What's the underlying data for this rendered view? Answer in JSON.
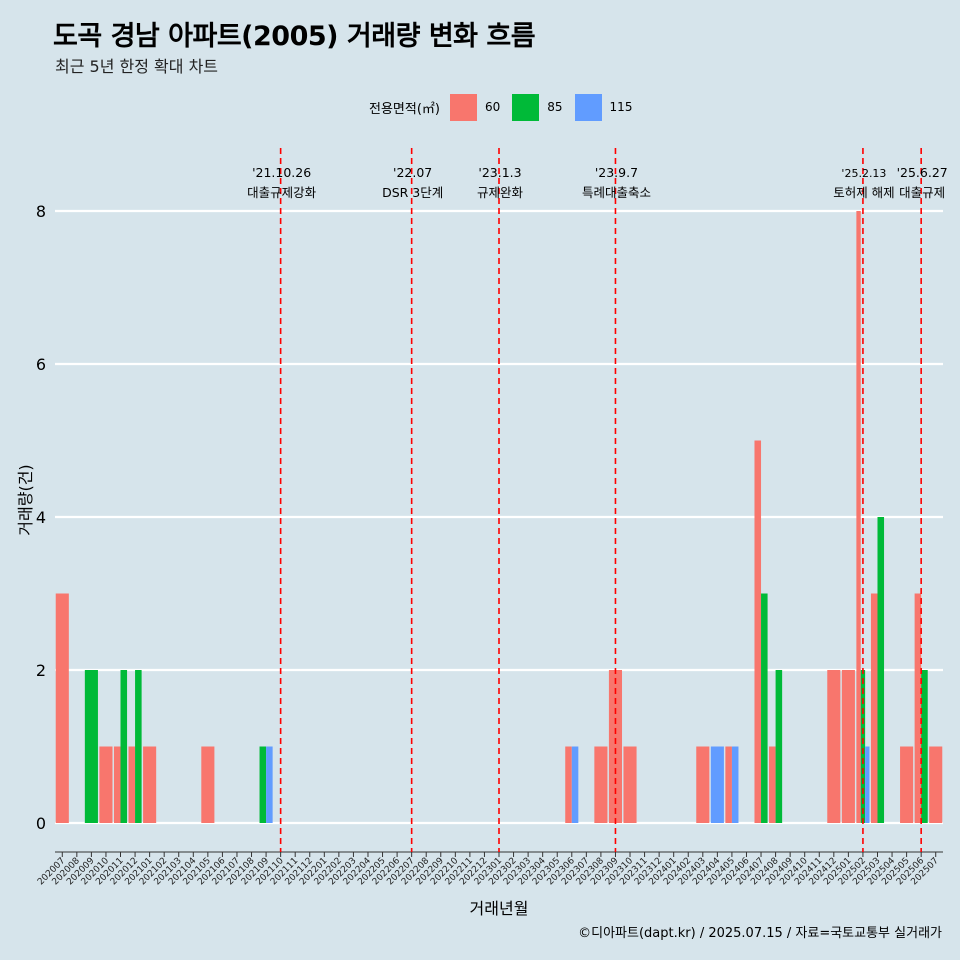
{
  "title": "도곡 경남 아파트(2005) 거래량 변화 흐름",
  "subtitle": "최근 5년 한정 확대 차트",
  "legend": {
    "title": "전용면적(㎡)",
    "items": [
      {
        "label": "60",
        "color": "#f8766d"
      },
      {
        "label": "85",
        "color": "#00ba38"
      },
      {
        "label": "115",
        "color": "#619cff"
      }
    ]
  },
  "caption": "©디아파트(dapt.kr) / 2025.07.15 / 자료=국토교통부 실거래가",
  "chart_data": {
    "type": "bar",
    "xlabel": "거래년월",
    "ylabel": "거래량(건)",
    "ylim": [
      0,
      8
    ],
    "yticks": [
      0,
      2,
      4,
      6,
      8
    ],
    "categories": [
      "202007",
      "202008",
      "202009",
      "202010",
      "202011",
      "202012",
      "202101",
      "202102",
      "202103",
      "202104",
      "202105",
      "202106",
      "202107",
      "202108",
      "202109",
      "202110",
      "202111",
      "202112",
      "202201",
      "202202",
      "202203",
      "202204",
      "202205",
      "202206",
      "202207",
      "202208",
      "202209",
      "202210",
      "202211",
      "202212",
      "202301",
      "202302",
      "202303",
      "202304",
      "202305",
      "202306",
      "202307",
      "202308",
      "202309",
      "202310",
      "202311",
      "202312",
      "202401",
      "202402",
      "202403",
      "202404",
      "202405",
      "202406",
      "202407",
      "202408",
      "202409",
      "202410",
      "202411",
      "202412",
      "202501",
      "202502",
      "202503",
      "202504",
      "202505",
      "202506",
      "202507"
    ],
    "series": [
      {
        "name": "60",
        "color": "#f8766d",
        "values": [
          3,
          0,
          0,
          1,
          1,
          1,
          1,
          0,
          0,
          0,
          1,
          0,
          0,
          0,
          0,
          0,
          0,
          0,
          0,
          0,
          0,
          0,
          0,
          0,
          0,
          0,
          0,
          0,
          0,
          0,
          0,
          0,
          0,
          0,
          0,
          1,
          0,
          1,
          2,
          1,
          0,
          0,
          0,
          0,
          1,
          0,
          1,
          0,
          5,
          1,
          0,
          0,
          0,
          2,
          2,
          8,
          3,
          0,
          1,
          3,
          1
        ]
      },
      {
        "name": "85",
        "color": "#00ba38",
        "values": [
          0,
          0,
          2,
          0,
          2,
          2,
          0,
          0,
          0,
          0,
          0,
          0,
          0,
          0,
          1,
          0,
          0,
          0,
          0,
          0,
          0,
          0,
          0,
          0,
          0,
          0,
          0,
          0,
          0,
          0,
          0,
          0,
          0,
          0,
          0,
          0,
          0,
          0,
          0,
          0,
          0,
          0,
          0,
          0,
          0,
          0,
          0,
          0,
          3,
          2,
          0,
          0,
          0,
          0,
          0,
          2,
          4,
          0,
          0,
          2,
          0
        ]
      },
      {
        "name": "115",
        "color": "#619cff",
        "values": [
          0,
          0,
          0,
          0,
          0,
          0,
          0,
          0,
          0,
          0,
          0,
          0,
          0,
          0,
          1,
          0,
          0,
          0,
          0,
          0,
          0,
          0,
          0,
          0,
          0,
          0,
          0,
          0,
          0,
          0,
          0,
          0,
          0,
          0,
          0,
          1,
          0,
          0,
          0,
          0,
          0,
          0,
          0,
          0,
          0,
          1,
          1,
          0,
          0,
          0,
          0,
          0,
          0,
          0,
          0,
          1,
          0,
          0,
          0,
          0,
          0
        ]
      }
    ],
    "annotations": [
      {
        "x": "202110",
        "date": "'21.10.26",
        "label": "대출규제강화"
      },
      {
        "x": "202207",
        "date": "'22.07",
        "label": "DSR 3단계"
      },
      {
        "x": "202301",
        "date": "'23.1.3",
        "label": "규제완화"
      },
      {
        "x": "202309",
        "date": "'23.9.7",
        "label": "특례대출축소"
      },
      {
        "x": "202502",
        "date": "'25.2.13",
        "label": "토허제 해제"
      },
      {
        "x": "202506",
        "date": "'25.6.27",
        "label": "대출규제"
      }
    ],
    "grid": true,
    "legend_position": "top"
  }
}
